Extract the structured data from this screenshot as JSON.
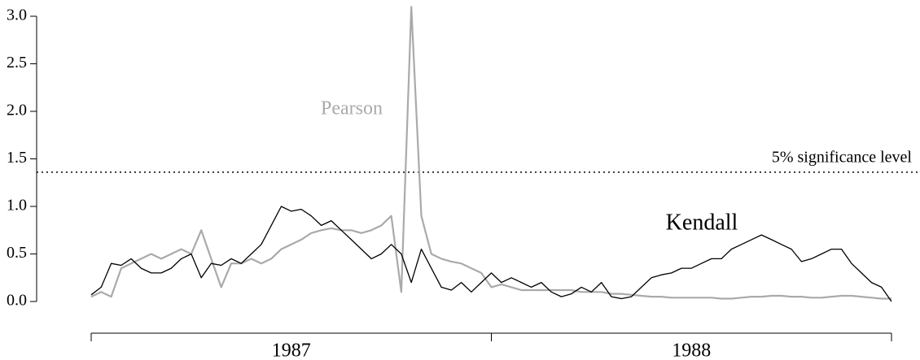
{
  "chart_data": {
    "type": "line",
    "x": [
      1987,
      1987.025,
      1987.05,
      1987.075,
      1987.1,
      1987.125,
      1987.15,
      1987.175,
      1987.2,
      1987.225,
      1987.25,
      1987.275,
      1987.3,
      1987.325,
      1987.35,
      1987.375,
      1987.4,
      1987.425,
      1987.45,
      1987.475,
      1987.5,
      1987.525,
      1987.55,
      1987.575,
      1987.6,
      1987.625,
      1987.65,
      1987.675,
      1987.7,
      1987.725,
      1987.75,
      1987.775,
      1987.8,
      1987.825,
      1987.85,
      1987.875,
      1987.9,
      1987.925,
      1987.95,
      1987.975,
      1988,
      1988.025,
      1988.05,
      1988.075,
      1988.1,
      1988.125,
      1988.15,
      1988.175,
      1988.2,
      1988.225,
      1988.25,
      1988.275,
      1988.3,
      1988.325,
      1988.35,
      1988.375,
      1988.4,
      1988.425,
      1988.45,
      1988.475,
      1988.5,
      1988.525,
      1988.55,
      1988.575,
      1988.6,
      1988.625,
      1988.65,
      1988.675,
      1988.7,
      1988.725,
      1988.75,
      1988.775,
      1988.8,
      1988.825,
      1988.85,
      1988.875,
      1988.9,
      1988.925,
      1988.95,
      1988.975,
      1989
    ],
    "series": [
      {
        "name": "Pearson",
        "color": "#aaaaaa",
        "values": [
          0.05,
          0.1,
          0.05,
          0.35,
          0.4,
          0.45,
          0.5,
          0.45,
          0.5,
          0.55,
          0.5,
          0.75,
          0.45,
          0.15,
          0.4,
          0.4,
          0.45,
          0.4,
          0.45,
          0.55,
          0.6,
          0.65,
          0.72,
          0.75,
          0.77,
          0.75,
          0.75,
          0.72,
          0.75,
          0.8,
          0.9,
          0.1,
          3.1,
          0.9,
          0.5,
          0.45,
          0.42,
          0.4,
          0.35,
          0.3,
          0.15,
          0.18,
          0.15,
          0.12,
          0.12,
          0.12,
          0.12,
          0.12,
          0.12,
          0.1,
          0.1,
          0.1,
          0.08,
          0.08,
          0.07,
          0.06,
          0.05,
          0.05,
          0.04,
          0.04,
          0.04,
          0.04,
          0.04,
          0.03,
          0.03,
          0.04,
          0.05,
          0.05,
          0.06,
          0.06,
          0.05,
          0.05,
          0.04,
          0.04,
          0.05,
          0.06,
          0.06,
          0.05,
          0.04,
          0.03,
          0.03
        ]
      },
      {
        "name": "Kendall",
        "color": "#000000",
        "values": [
          0.07,
          0.15,
          0.4,
          0.38,
          0.45,
          0.35,
          0.3,
          0.3,
          0.35,
          0.45,
          0.5,
          0.25,
          0.4,
          0.38,
          0.45,
          0.4,
          0.5,
          0.6,
          0.8,
          1.0,
          0.95,
          0.97,
          0.9,
          0.8,
          0.85,
          0.75,
          0.65,
          0.55,
          0.45,
          0.5,
          0.6,
          0.5,
          0.2,
          0.55,
          0.35,
          0.15,
          0.12,
          0.2,
          0.1,
          0.2,
          0.3,
          0.2,
          0.25,
          0.2,
          0.15,
          0.2,
          0.1,
          0.05,
          0.08,
          0.15,
          0.1,
          0.2,
          0.05,
          0.03,
          0.05,
          0.15,
          0.25,
          0.28,
          0.3,
          0.35,
          0.35,
          0.4,
          0.45,
          0.45,
          0.55,
          0.6,
          0.65,
          0.7,
          0.65,
          0.6,
          0.55,
          0.42,
          0.45,
          0.5,
          0.55,
          0.55,
          0.4,
          0.3,
          0.2,
          0.15,
          0.0
        ]
      }
    ],
    "threshold": {
      "value": 1.36,
      "label": "5% significance level"
    },
    "ylim": [
      0,
      3.0
    ],
    "yticks": [
      {
        "value": 0,
        "label": "0.0"
      },
      0.5,
      {
        "value": 1,
        "label": "1.0"
      },
      1.5,
      {
        "value": 2,
        "label": "2.0"
      },
      2.5,
      {
        "value": 3,
        "label": "3.0"
      }
    ],
    "xlim": [
      1987,
      1989
    ],
    "xticks": [
      1987,
      1988,
      1989
    ],
    "x_period_labels": [
      "1987",
      "1988"
    ]
  }
}
